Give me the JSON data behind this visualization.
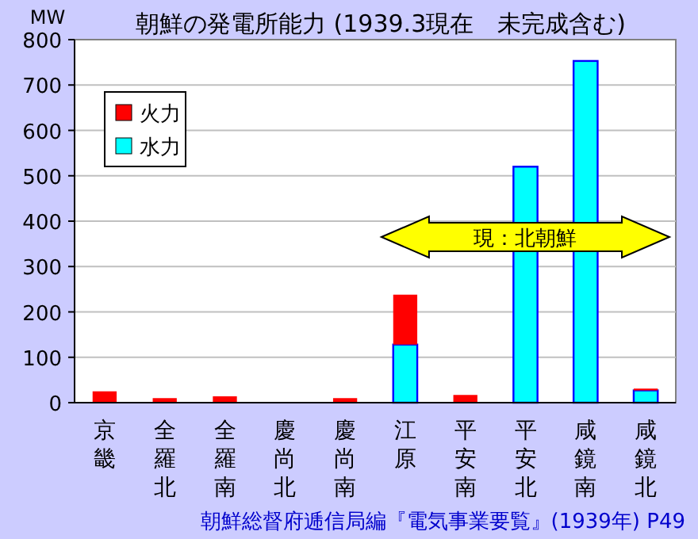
{
  "chart_data": {
    "type": "bar",
    "title": "朝鮮の発電所能力 (1939.3現在　未完成含む)",
    "ylabel": "MW",
    "categories": [
      "京畿",
      "全羅北",
      "全羅南",
      "慶尚北",
      "慶尚南",
      "江原",
      "平安南",
      "平安北",
      "咸鏡南",
      "咸鏡北"
    ],
    "series": [
      {
        "name": "水力",
        "color": "#00ffff",
        "values": [
          0,
          null,
          null,
          0,
          0,
          128,
          0,
          520,
          753,
          27
        ]
      },
      {
        "name": "火力",
        "color": "#ff0000",
        "values": [
          25,
          10,
          14,
          0,
          10,
          110,
          17,
          0,
          0,
          4
        ]
      }
    ],
    "stacked": true,
    "ylim": [
      0,
      800
    ],
    "yticks": [
      0,
      100,
      200,
      300,
      400,
      500,
      600,
      700,
      800
    ],
    "grid": "y",
    "legend": "top left",
    "annotations": [
      "朝鮮総督府逓信局編『電気事業要覧』(1939年) P49",
      "現：北朝鮮"
    ]
  }
}
